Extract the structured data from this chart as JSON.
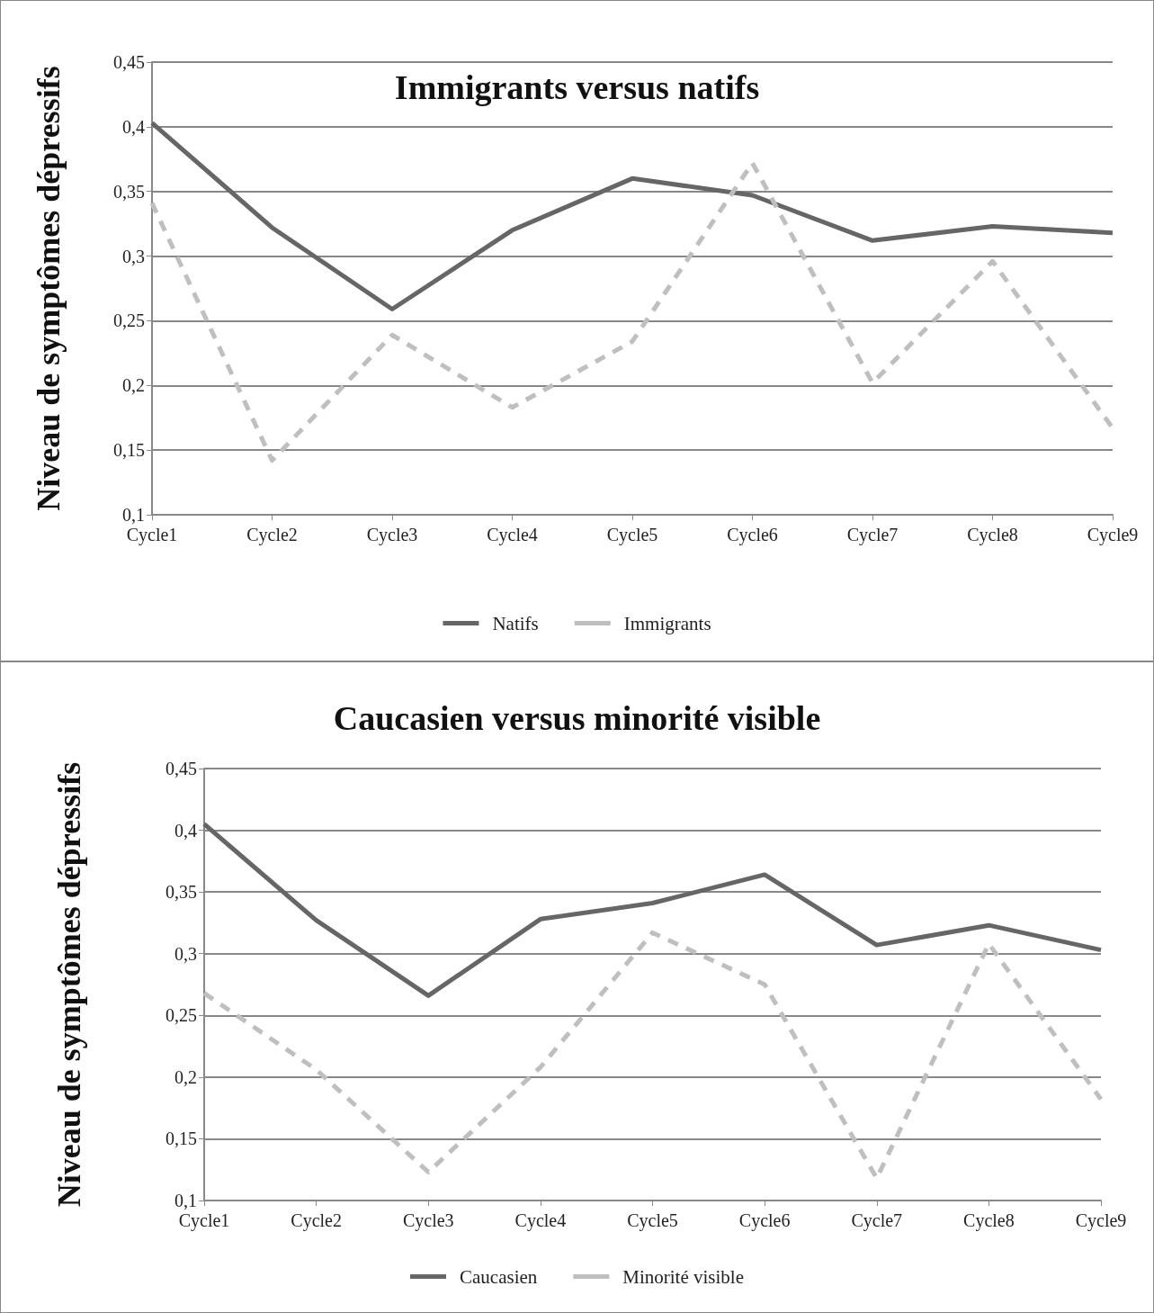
{
  "chart_data": [
    {
      "type": "line",
      "title": "Immigrants versus natifs",
      "ylabel": "Niveau de symptômes dépressifs",
      "categories": [
        "Cycle1",
        "Cycle2",
        "Cycle3",
        "Cycle4",
        "Cycle5",
        "Cycle6",
        "Cycle7",
        "Cycle8",
        "Cycle9"
      ],
      "series": [
        {
          "name": "Natifs",
          "color": "#666666",
          "line_style": "solid",
          "values": [
            0.403,
            0.322,
            0.259,
            0.32,
            0.36,
            0.347,
            0.312,
            0.323,
            0.318
          ]
        },
        {
          "name": "Immigrants",
          "color": "#bfbfbf",
          "line_style": "dashed",
          "values": [
            0.341,
            0.142,
            0.239,
            0.183,
            0.234,
            0.372,
            0.202,
            0.296,
            0.167
          ]
        }
      ],
      "ylim": [
        0.1,
        0.45
      ],
      "yticks": [
        {
          "value": 0.1,
          "label": "0,1"
        },
        {
          "value": 0.15,
          "label": "0,15"
        },
        {
          "value": 0.2,
          "label": "0,2"
        },
        {
          "value": 0.25,
          "label": "0,25"
        },
        {
          "value": 0.3,
          "label": "0,3"
        },
        {
          "value": 0.35,
          "label": "0,35"
        },
        {
          "value": 0.4,
          "label": "0,4"
        },
        {
          "value": 0.45,
          "label": "0,45"
        }
      ],
      "grid": "y",
      "legend": "bottom",
      "marker": "none"
    },
    {
      "type": "line",
      "title": "Caucasien versus minorité visible",
      "ylabel": "Niveau de symptômes dépressifs",
      "categories": [
        "Cycle1",
        "Cycle2",
        "Cycle3",
        "Cycle4",
        "Cycle5",
        "Cycle6",
        "Cycle7",
        "Cycle8",
        "Cycle9"
      ],
      "series": [
        {
          "name": "Caucasien",
          "color": "#666666",
          "line_style": "solid",
          "values": [
            0.405,
            0.327,
            0.266,
            0.328,
            0.341,
            0.364,
            0.307,
            0.323,
            0.303
          ]
        },
        {
          "name": "Minorité visible",
          "color": "#bfbfbf",
          "line_style": "dashed",
          "values": [
            0.268,
            0.206,
            0.123,
            0.208,
            0.317,
            0.275,
            0.118,
            0.308,
            0.182
          ]
        }
      ],
      "ylim": [
        0.1,
        0.45
      ],
      "yticks": [
        {
          "value": 0.1,
          "label": "0,1"
        },
        {
          "value": 0.15,
          "label": "0,15"
        },
        {
          "value": 0.2,
          "label": "0,2"
        },
        {
          "value": 0.25,
          "label": "0,25"
        },
        {
          "value": 0.3,
          "label": "0,3"
        },
        {
          "value": 0.35,
          "label": "0,35"
        },
        {
          "value": 0.4,
          "label": "0,4"
        },
        {
          "value": 0.45,
          "label": "0,45"
        }
      ],
      "grid": "y",
      "legend": "bottom",
      "marker": "none"
    }
  ]
}
